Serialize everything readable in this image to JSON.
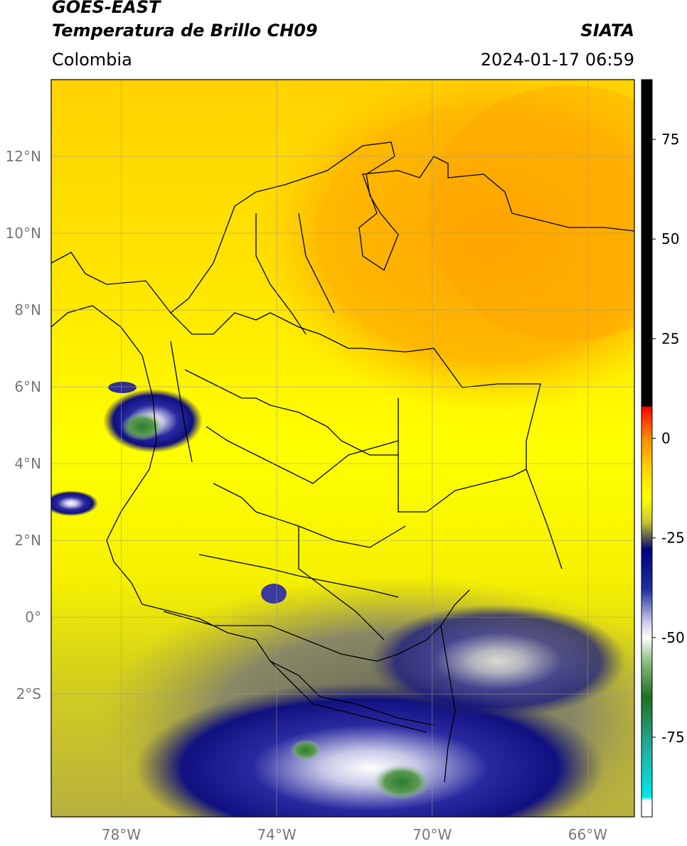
{
  "header": {
    "satellite": "GOES-EAST",
    "product": "Temperatura de Brillo CH09",
    "region": "Colombia",
    "organization": "SIATA",
    "datetime": "2024-01-17 06:59"
  },
  "map": {
    "lon_range": [
      -79.8,
      -64.8
    ],
    "lat_range": [
      -5.2,
      14.0
    ],
    "lon_ticks": [
      {
        "value": -78,
        "label": "78°W"
      },
      {
        "value": -74,
        "label": "74°W"
      },
      {
        "value": -70,
        "label": "70°W"
      },
      {
        "value": -66,
        "label": "66°W"
      }
    ],
    "lat_ticks": [
      {
        "value": 12,
        "label": "12°N"
      },
      {
        "value": 10,
        "label": "10°N"
      },
      {
        "value": 8,
        "label": "8°N"
      },
      {
        "value": 6,
        "label": "6°N"
      },
      {
        "value": 4,
        "label": "4°N"
      },
      {
        "value": 2,
        "label": "2°N"
      },
      {
        "value": 0,
        "label": "0°"
      },
      {
        "value": -2,
        "label": "2°S"
      }
    ],
    "gridlines": true
  },
  "colorbar": {
    "range": [
      -95,
      90
    ],
    "ticks": [
      {
        "value": 75,
        "label": "75"
      },
      {
        "value": 50,
        "label": "50"
      },
      {
        "value": 25,
        "label": "25"
      },
      {
        "value": 0,
        "label": "0"
      },
      {
        "value": -25,
        "label": "-25"
      },
      {
        "value": -50,
        "label": "-50"
      },
      {
        "value": -75,
        "label": "-75"
      }
    ],
    "stops": [
      {
        "value": 90,
        "color": "#000000"
      },
      {
        "value": 8,
        "color": "#000000"
      },
      {
        "value": 7.9,
        "color": "#ff0000"
      },
      {
        "value": 0,
        "color": "#ff8c00"
      },
      {
        "value": -8,
        "color": "#ffd700"
      },
      {
        "value": -15,
        "color": "#ffff00"
      },
      {
        "value": -21,
        "color": "#c8c832"
      },
      {
        "value": -25,
        "color": "#555555"
      },
      {
        "value": -28,
        "color": "#000080"
      },
      {
        "value": -38,
        "color": "#2030a0"
      },
      {
        "value": -46,
        "color": "#c8c8e8"
      },
      {
        "value": -50,
        "color": "#ffffff"
      },
      {
        "value": -56,
        "color": "#8ac080"
      },
      {
        "value": -65,
        "color": "#207020"
      },
      {
        "value": -78,
        "color": "#20b0a0"
      },
      {
        "value": -90,
        "color": "#00e8e8"
      },
      {
        "value": -91,
        "color": "#ffffff"
      },
      {
        "value": -95,
        "color": "#ffffff"
      }
    ]
  },
  "colors": {
    "warm_ocean": "#ffa500",
    "land_mid": "#ffff00",
    "cold_cloud": "#000080",
    "gridline": "#999999"
  }
}
